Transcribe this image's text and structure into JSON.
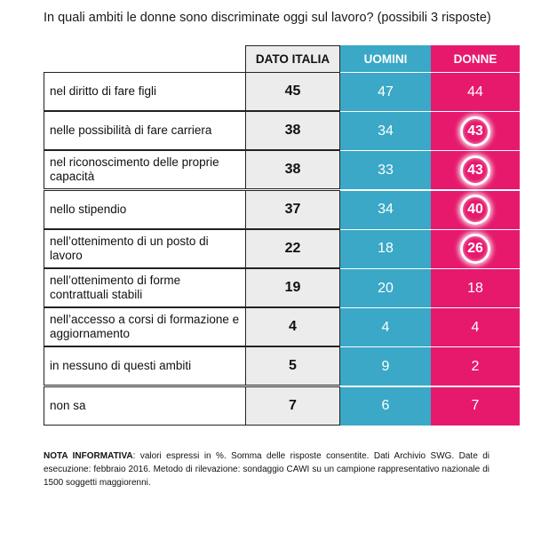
{
  "title": "In quali ambiti le donne sono discriminate oggi sul lavoro? (possibili 3 risposte)",
  "chart_data": {
    "type": "table",
    "columns": [
      "DATO ITALIA",
      "UOMINI",
      "DONNE"
    ],
    "rows": [
      {
        "label": "nel diritto di fare figli",
        "italia": "45",
        "uomini": "47",
        "donne": "44",
        "highlight": false
      },
      {
        "label": "nelle possibilità di fare carriera",
        "italia": "38",
        "uomini": "34",
        "donne": "43",
        "highlight": true
      },
      {
        "label": "nel riconoscimento delle proprie capacità",
        "italia": "38",
        "uomini": "33",
        "donne": "43",
        "highlight": true
      },
      {
        "label": "nello stipendio",
        "italia": "37",
        "uomini": "34",
        "donne": "40",
        "highlight": true
      },
      {
        "label": "nell’ottenimento di un posto di lavoro",
        "italia": "22",
        "uomini": "18",
        "donne": "26",
        "highlight": true
      },
      {
        "label": "nell’ottenimento di forme contrattuali stabili",
        "italia": "19",
        "uomini": "20",
        "donne": "18",
        "highlight": false
      },
      {
        "label": "nell’accesso a corsi di formazione e aggiornamento",
        "italia": "4",
        "uomini": "4",
        "donne": "4",
        "highlight": false
      },
      {
        "label": "in nessuno di questi ambiti",
        "italia": "5",
        "uomini": "9",
        "donne": "2",
        "highlight": false
      },
      {
        "label": "non sa",
        "italia": "7",
        "uomini": "6",
        "donne": "7",
        "highlight": false
      }
    ],
    "colors": {
      "italia": "#ececec",
      "uomini": "#3aa8c6",
      "donne": "#e6196d"
    }
  },
  "note": {
    "bold": "NOTA INFORMATIVA",
    "text": ": valori espressi in %. Somma delle risposte consentite. Dati Archivio SWG. Date di esecuzione: febbraio 2016. Metodo di rilevazione: sondaggio CAWI su un campione rappresentativo nazionale di 1500 soggetti maggiorenni."
  }
}
